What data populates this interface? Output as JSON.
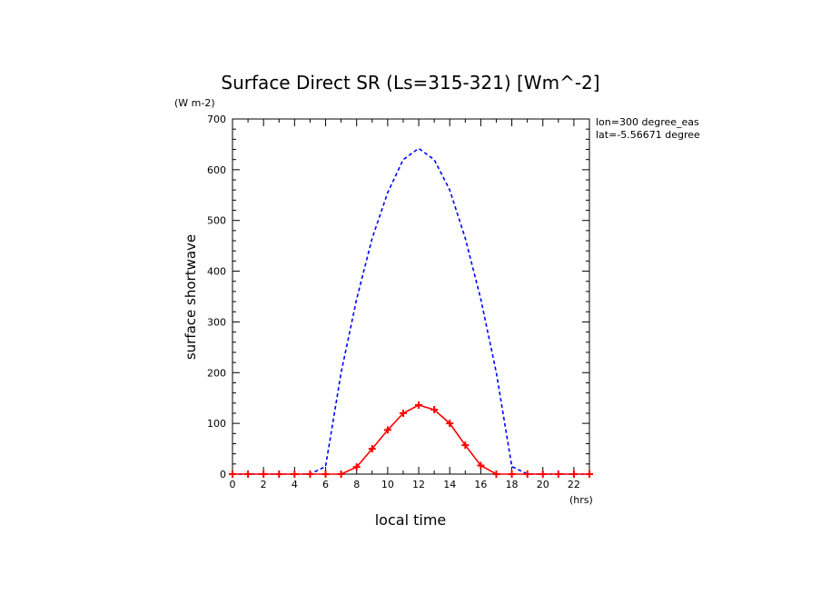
{
  "chart_data": {
    "type": "line",
    "title": "Surface Direct SR (Ls=315-321) [Wm^-2]",
    "y_units": "(W m-2)",
    "ylabel": "surface shortwave",
    "xlabel": "local time",
    "x_units": "(hrs)",
    "info_lon": "lon=300 degree_eas",
    "info_lat": "lat=-5.56671 degree",
    "xlim": [
      0,
      23
    ],
    "ylim": [
      0,
      700
    ],
    "x_ticks": [
      0,
      2,
      4,
      6,
      8,
      10,
      12,
      14,
      16,
      18,
      20,
      22
    ],
    "y_ticks": [
      0,
      100,
      200,
      300,
      400,
      500,
      600,
      700
    ],
    "grid": false,
    "series": [
      {
        "color": "#0000ff",
        "style": "dashed",
        "markers": false,
        "x": [
          0,
          1,
          2,
          3,
          4,
          5,
          6,
          7,
          8,
          9,
          10,
          11,
          12,
          13,
          14,
          15,
          16,
          17,
          18,
          19,
          20,
          21,
          22,
          23
        ],
        "values": [
          0,
          0,
          0,
          0,
          0,
          0,
          15,
          200,
          345,
          465,
          555,
          620,
          642,
          620,
          560,
          465,
          345,
          200,
          15,
          0,
          0,
          0,
          0,
          0
        ]
      },
      {
        "color": "#ff0000",
        "style": "solid",
        "markers": true,
        "x": [
          0,
          1,
          2,
          3,
          4,
          5,
          6,
          7,
          8,
          9,
          10,
          11,
          12,
          13,
          14,
          15,
          16,
          17,
          18,
          19,
          20,
          21,
          22,
          23
        ],
        "values": [
          0,
          0,
          0,
          0,
          0,
          0,
          0,
          0,
          14,
          50,
          87,
          120,
          136,
          127,
          100,
          57,
          17,
          0,
          0,
          0,
          0,
          0,
          0,
          0
        ]
      }
    ]
  }
}
